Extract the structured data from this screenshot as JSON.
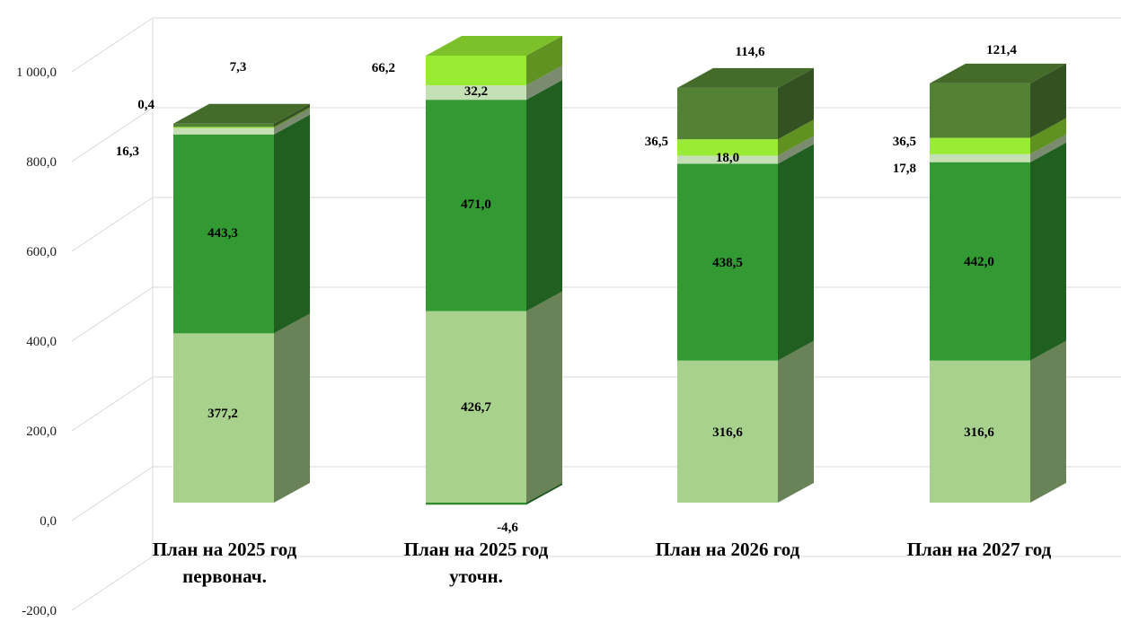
{
  "chart_data": {
    "type": "bar",
    "stacked": true,
    "three_d": true,
    "title": "",
    "xlabel": "",
    "ylabel": "",
    "ylim": [
      -200,
      1000
    ],
    "y_ticks": [
      "-200,0",
      "0,0",
      "200,0",
      "400,0",
      "600,0",
      "800,0",
      "1 000,0"
    ],
    "grid": true,
    "legend": "none",
    "categories": [
      [
        "План на 2025 год",
        "первонач."
      ],
      [
        "План на 2025 год",
        "уточн."
      ],
      [
        "План на 2026 год"
      ],
      [
        "План на 2027 год"
      ]
    ],
    "series": [
      {
        "color": "#a9d18e",
        "values": [
          377.2,
          426.7,
          316.6,
          316.6
        ],
        "labels": [
          "377,2",
          "426,7",
          "316,6",
          "316,6"
        ]
      },
      {
        "color": "#339933",
        "values": [
          443.3,
          471.0,
          438.5,
          442.0
        ],
        "labels": [
          "443,3",
          "471,0",
          "438,5",
          "442,0"
        ]
      },
      {
        "color": "#c5e0b4",
        "values": [
          16.3,
          32.2,
          18.0,
          17.8
        ],
        "labels": [
          "16,3",
          "32,2",
          "18,0",
          "17,8"
        ]
      },
      {
        "color": "#99eb33",
        "values": [
          0.4,
          66.2,
          36.5,
          36.5
        ],
        "labels": [
          "0,4",
          "66,2",
          "36,5",
          "36,5"
        ]
      },
      {
        "color": "#548235",
        "values": [
          7.3,
          0,
          114.6,
          121.4
        ],
        "labels": [
          "7,3",
          "",
          "114,6",
          "121,4"
        ]
      },
      {
        "color": "#2e8b2e",
        "values": [
          0,
          -4.6,
          0,
          0
        ],
        "labels": [
          "",
          "-4,6",
          "",
          ""
        ]
      }
    ]
  }
}
